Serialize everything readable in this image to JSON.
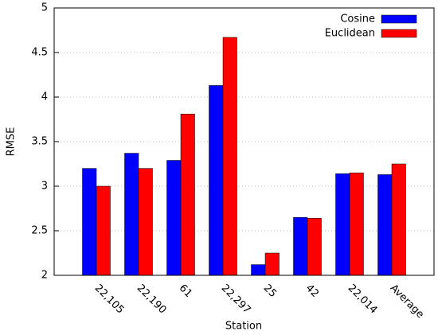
{
  "chart_data": {
    "type": "bar",
    "x_label": "Station",
    "y_label": "RMSE",
    "categories": [
      "22,105",
      "22,190",
      "61",
      "22,297",
      "25",
      "42",
      "22,014",
      "Average"
    ],
    "series": [
      {
        "name": "Cosine",
        "color": "#0000ff",
        "values": [
          3.2,
          3.37,
          3.29,
          4.13,
          2.12,
          2.65,
          3.14,
          3.13
        ]
      },
      {
        "name": "Euclidean",
        "color": "#ff0000",
        "values": [
          3.0,
          3.2,
          3.81,
          4.67,
          2.25,
          2.64,
          3.15,
          3.25
        ]
      }
    ],
    "ylim": [
      2,
      5
    ],
    "yticks": [
      2,
      2.5,
      3,
      3.5,
      4,
      4.5,
      5
    ],
    "grid": true,
    "legend": "top-right"
  }
}
